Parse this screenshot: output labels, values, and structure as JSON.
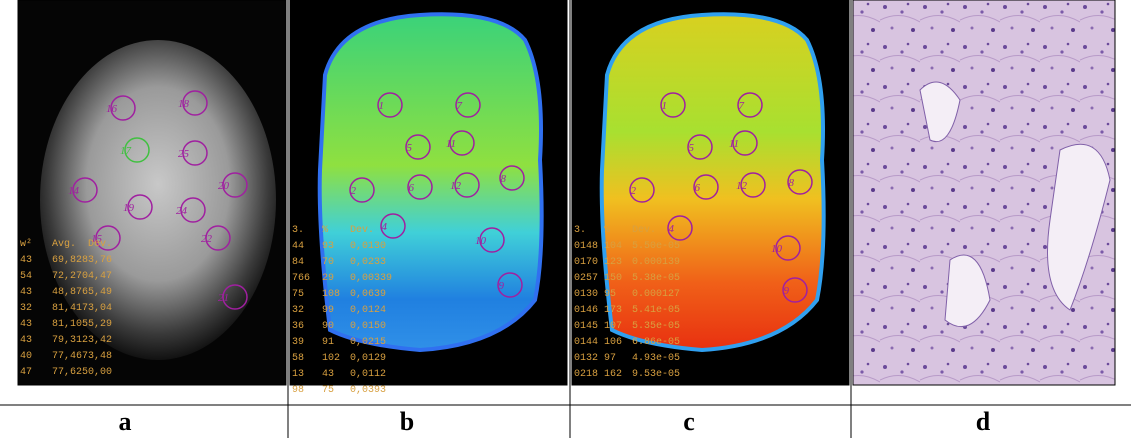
{
  "panels": [
    {
      "label": "a",
      "rois": [
        "16",
        "18",
        "17",
        "25",
        "20",
        "14",
        "19",
        "24",
        "15",
        "22",
        "21"
      ],
      "table": {
        "header": [
          "w²",
          "Avg.",
          "Dev."
        ],
        "rows": [
          [
            "43",
            "69,828",
            "3,76"
          ],
          [
            "54",
            "72,270",
            "4,47"
          ],
          [
            "43",
            "48,876",
            "5,49"
          ],
          [
            "32",
            "81,417",
            "3,04"
          ],
          [
            "43",
            "81,105",
            "5,29"
          ],
          [
            "43",
            "79,312",
            "3,42"
          ],
          [
            "40",
            "77,467",
            "3,48"
          ],
          [
            "47",
            "77,625",
            "0,00"
          ]
        ]
      }
    },
    {
      "label": "b",
      "rois": [
        "1",
        "7",
        "5",
        "11",
        "2",
        "6",
        "12",
        "8",
        "4",
        "10",
        "9"
      ],
      "table": {
        "header": [
          "3.",
          "%",
          "Dev."
        ],
        "rows": [
          [
            "44",
            "93",
            "0,0130"
          ],
          [
            "84",
            "70",
            "0,0233"
          ],
          [
            "766",
            "29",
            "0,00339"
          ],
          [
            "75",
            "108",
            "0,0639"
          ],
          [
            "32",
            "99",
            "0,0124"
          ],
          [
            "36",
            "90",
            "0,0150"
          ],
          [
            "39",
            "91",
            "0,0215"
          ],
          [
            "58",
            "102",
            "0,0129"
          ],
          [
            "13",
            "43",
            "0,0112"
          ],
          [
            "98",
            "75",
            "0,0393"
          ]
        ]
      }
    },
    {
      "label": "c",
      "rois": [
        "1",
        "7",
        "5",
        "11",
        "2",
        "6",
        "12",
        "8",
        "4",
        "10",
        "9"
      ],
      "table": {
        "header": [
          "3.",
          "%",
          "Dev."
        ],
        "rows": [
          [
            "0148",
            "104",
            "5.50e-05"
          ],
          [
            "0170",
            "123",
            "0.000139"
          ],
          [
            "0257",
            "150",
            "5.38e-05"
          ],
          [
            "0130",
            "95",
            "0.000127"
          ],
          [
            "0146",
            "173",
            "5.41e-05"
          ],
          [
            "0145",
            "107",
            "5.35e-05"
          ],
          [
            "0144",
            "106",
            "6.86e-05"
          ],
          [
            "0132",
            "97",
            "4.93e-05"
          ],
          [
            "0218",
            "162",
            "9.53e-05"
          ]
        ]
      }
    },
    {
      "label": "d"
    }
  ]
}
